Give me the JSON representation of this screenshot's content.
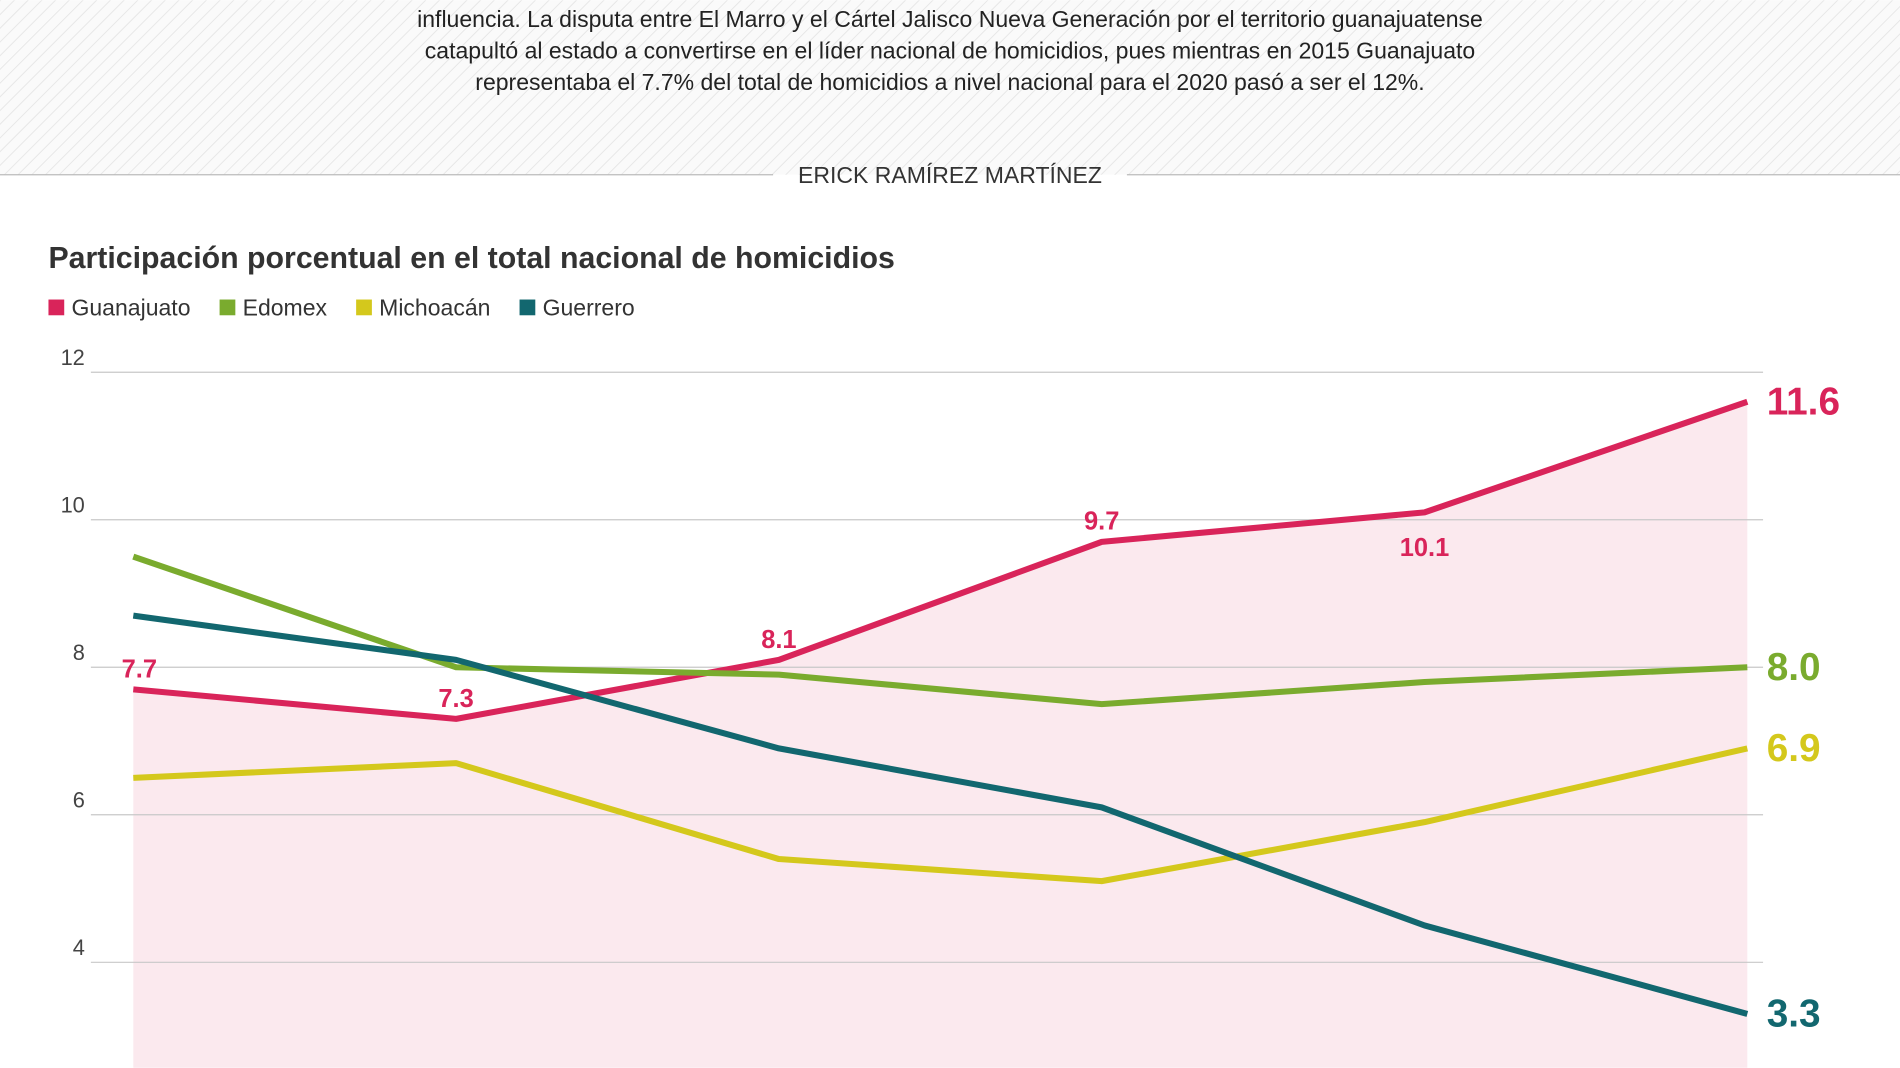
{
  "intro": [
    "influencia. La disputa entre El Marro y el Cártel Jalisco Nueva Generación por el territorio guanajuatense",
    "catapultó al estado a convertirse en el líder nacional de homicidios, pues mientras en 2015 Guanajuato",
    "representaba el 7.7% del total de homicidios a nivel nacional para el 2020 pasó a ser el 12%."
  ],
  "author": "ERICK RAMÍREZ MARTÍNEZ",
  "chart_data": {
    "type": "line",
    "title": "Participación porcentual en el total nacional de homicidios",
    "categories": [
      null,
      null,
      null,
      null,
      null,
      null
    ],
    "series": [
      {
        "name": "Guanajuato",
        "color": "#d9245a",
        "values": [
          7.7,
          7.3,
          8.1,
          9.7,
          10.1,
          11.6
        ],
        "value_labels": [
          "7.7",
          "7.3",
          "8.1",
          "9.7",
          "10.1",
          "11.6"
        ],
        "fill": "#fbe9ee"
      },
      {
        "name": "Edomex",
        "color": "#7aab2e",
        "values": [
          9.5,
          8.0,
          7.9,
          7.5,
          7.8,
          8.0
        ],
        "value_labels": [
          null,
          null,
          null,
          null,
          null,
          "8.0"
        ]
      },
      {
        "name": "Michoacán",
        "color": "#d4c81c",
        "values": [
          6.5,
          6.7,
          5.4,
          5.1,
          5.9,
          6.9
        ],
        "value_labels": [
          null,
          null,
          null,
          null,
          null,
          "6.9"
        ]
      },
      {
        "name": "Guerrero",
        "color": "#12676f",
        "values": [
          8.7,
          8.1,
          6.9,
          6.1,
          4.5,
          3.3
        ],
        "value_labels": [
          null,
          null,
          null,
          null,
          null,
          "3.3"
        ]
      }
    ],
    "ylim": [
      2.57,
      12
    ],
    "yticks": [
      12,
      10,
      8,
      6,
      4
    ],
    "grid": true,
    "legend": "top-left"
  }
}
